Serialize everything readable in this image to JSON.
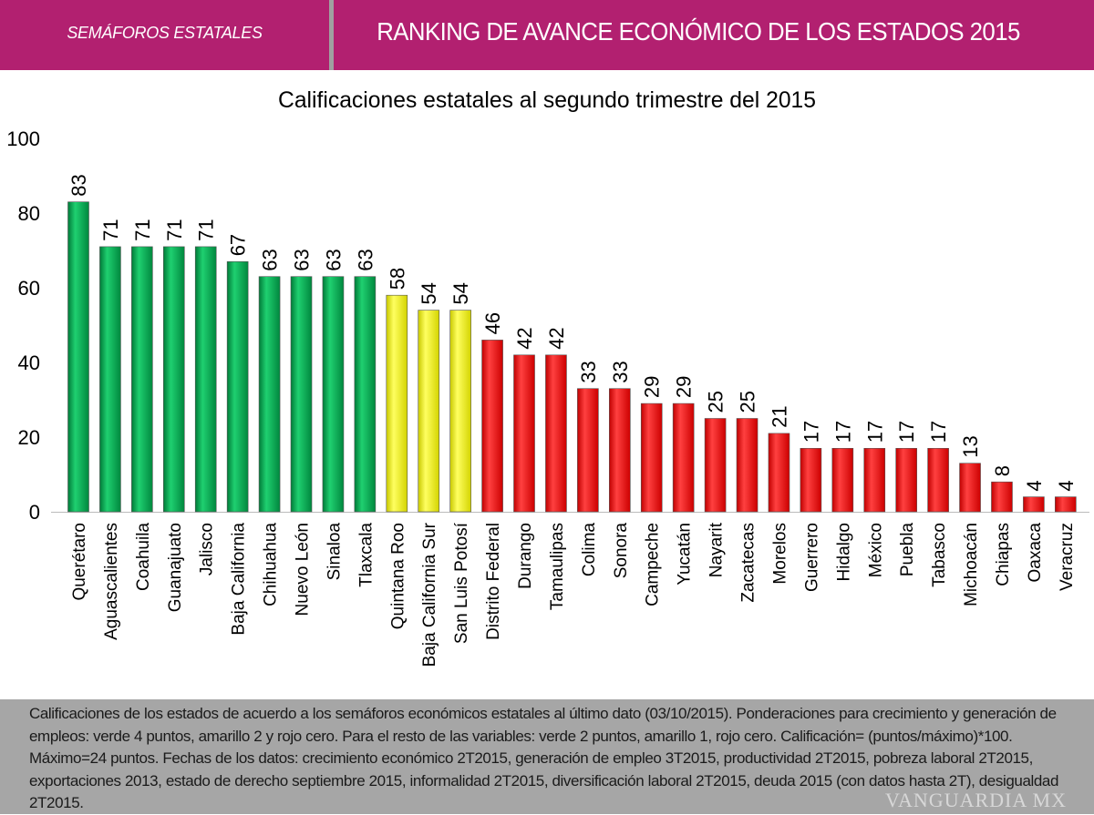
{
  "header": {
    "section": "SEMÁFOROS ESTATALES",
    "title": "RANKING DE AVANCE ECONÓMICO DE LOS ESTADOS 2015"
  },
  "chart_data": {
    "type": "bar",
    "title": "Calificaciones estatales al segundo trimestre del 2015",
    "xlabel": "",
    "ylabel": "",
    "ylim": [
      0,
      100
    ],
    "yticks": [
      "0",
      "20",
      "40",
      "60",
      "80",
      "100"
    ],
    "grid": false,
    "colors": {
      "green": "#00B050",
      "yellow": "#FFFF00",
      "red": "#FF0000"
    },
    "categories": [
      "Querétaro",
      "Aguascalientes",
      "Coahuila",
      "Guanajuato",
      "Jalisco",
      "Baja California",
      "Chihuahua",
      "Nuevo León",
      "Sinaloa",
      "Tlaxcala",
      "Quintana Roo",
      "Baja California Sur",
      "San Luis Potosí",
      "Distrito Federal",
      "Durango",
      "Tamaulipas",
      "Colima",
      "Sonora",
      "Campeche",
      "Yucatán",
      "Nayarit",
      "Zacatecas",
      "Morelos",
      "Guerrero",
      "Hidalgo",
      "México",
      "Puebla",
      "Tabasco",
      "Michoacán",
      "Chiapas",
      "Oaxaca",
      "Veracruz"
    ],
    "values": [
      83,
      71,
      71,
      71,
      71,
      67,
      63,
      63,
      63,
      63,
      58,
      54,
      54,
      46,
      42,
      42,
      33,
      33,
      29,
      29,
      25,
      25,
      21,
      17,
      17,
      17,
      17,
      17,
      13,
      8,
      4,
      4
    ],
    "bar_colors": [
      "green",
      "green",
      "green",
      "green",
      "green",
      "green",
      "green",
      "green",
      "green",
      "green",
      "yellow",
      "yellow",
      "yellow",
      "red",
      "red",
      "red",
      "red",
      "red",
      "red",
      "red",
      "red",
      "red",
      "red",
      "red",
      "red",
      "red",
      "red",
      "red",
      "red",
      "red",
      "red",
      "red"
    ]
  },
  "footer": {
    "note": "Calificaciones de los estados de acuerdo a los semáforos económicos estatales al último dato (03/10/2015). Ponderaciones para crecimiento y generación de empleos: verde 4 puntos, amarillo 2 y rojo cero. Para el resto de las variables: verde 2 puntos, amarillo 1, rojo cero. Calificación= (puntos/máximo)*100. Máximo=24 puntos. Fechas de los datos: crecimiento económico 2T2015, generación de empleo 3T2015, productividad 2T2015, pobreza laboral 2T2015, exportaciones 2013, estado de derecho septiembre 2015, informalidad 2T2015, diversificación laboral 2T2015, deuda 2015 (con datos hasta 2T), desigualdad 2T2015."
  },
  "watermark": "VANGUARDIA MX"
}
